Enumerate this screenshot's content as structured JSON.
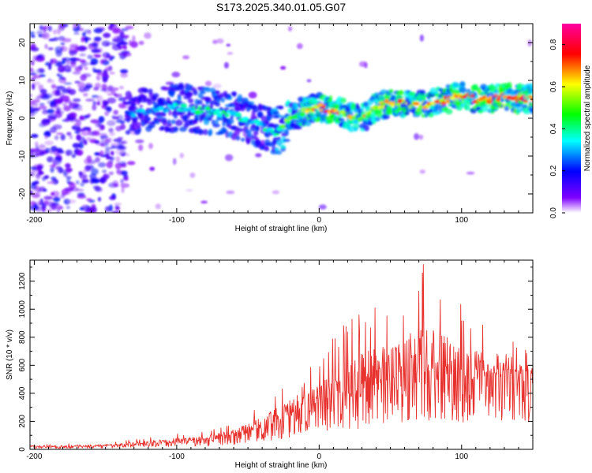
{
  "title": "S173.2025.340.01.05.G07",
  "chart_data": [
    {
      "type": "heatmap",
      "title": "S173.2025.340.01.05.G07",
      "xlabel": "Height of straight line (km)",
      "ylabel": "Frequency (Hz)",
      "xlim": [
        -203,
        150
      ],
      "ylim": [
        -25,
        25
      ],
      "xticks": [
        -200,
        -100,
        0,
        100
      ],
      "yticks": [
        -20,
        -10,
        0,
        10,
        20
      ],
      "colorbar": {
        "label": "Normalized spectral amplitude",
        "range": [
          0,
          0.9
        ],
        "ticks": [
          0,
          0.2,
          0.4,
          0.6,
          0.8
        ],
        "colors": [
          "#ffffff",
          "#7f00ff",
          "#0000ff",
          "#00ffff",
          "#00ff00",
          "#ffff00",
          "#ff0000",
          "#ff00ff"
        ]
      },
      "ridge": {
        "x": [
          -135,
          -120,
          -100,
          -80,
          -60,
          -40,
          -30,
          -20,
          -10,
          0,
          10,
          20,
          30,
          40,
          50,
          60,
          70,
          80,
          90,
          100,
          110,
          120,
          130,
          140,
          150
        ],
        "y": [
          1,
          2,
          3,
          2,
          1,
          -2,
          -4,
          0,
          2,
          3,
          2,
          1,
          0,
          3,
          4,
          4,
          3,
          4,
          5,
          6,
          5,
          5,
          6,
          5,
          5
        ],
        "amplitude": [
          0.3,
          0.35,
          0.4,
          0.45,
          0.45,
          0.4,
          0.5,
          0.6,
          0.65,
          0.75,
          0.8,
          0.65,
          0.7,
          0.75,
          0.8,
          0.75,
          0.7,
          0.75,
          0.8,
          0.85,
          0.8,
          0.85,
          0.9,
          0.85,
          0.8
        ]
      }
    },
    {
      "type": "line",
      "xlabel": "Height of straight line (km)",
      "ylabel": "SNR (10 * v/v)",
      "xlim": [
        -203,
        150
      ],
      "ylim": [
        0,
        1350
      ],
      "xticks": [
        -200,
        -100,
        0,
        100
      ],
      "yticks": [
        0,
        200,
        400,
        600,
        800,
        1000,
        1200
      ],
      "series": [
        {
          "name": "SNR",
          "color": "#e8302c",
          "envelope": {
            "x": [
              -203,
              -180,
              -150,
              -130,
              -110,
              -90,
              -70,
              -50,
              -40,
              -30,
              -20,
              -10,
              0,
              10,
              20,
              30,
              40,
              50,
              60,
              70,
              80,
              90,
              100,
              110,
              120,
              130,
              140,
              150
            ],
            "mean": [
              20,
              20,
              25,
              35,
              50,
              60,
              80,
              120,
              160,
              200,
              250,
              300,
              330,
              360,
              400,
              420,
              460,
              500,
              530,
              560,
              570,
              560,
              540,
              520,
              520,
              530,
              540,
              530
            ],
            "peak": [
              40,
              40,
              50,
              70,
              100,
              120,
              160,
              250,
              320,
              420,
              500,
              700,
              640,
              820,
              950,
              1020,
              1060,
              1080,
              1120,
              1320,
              1340,
              1120,
              1040,
              940,
              900,
              880,
              740,
              690
            ]
          }
        }
      ]
    }
  ]
}
